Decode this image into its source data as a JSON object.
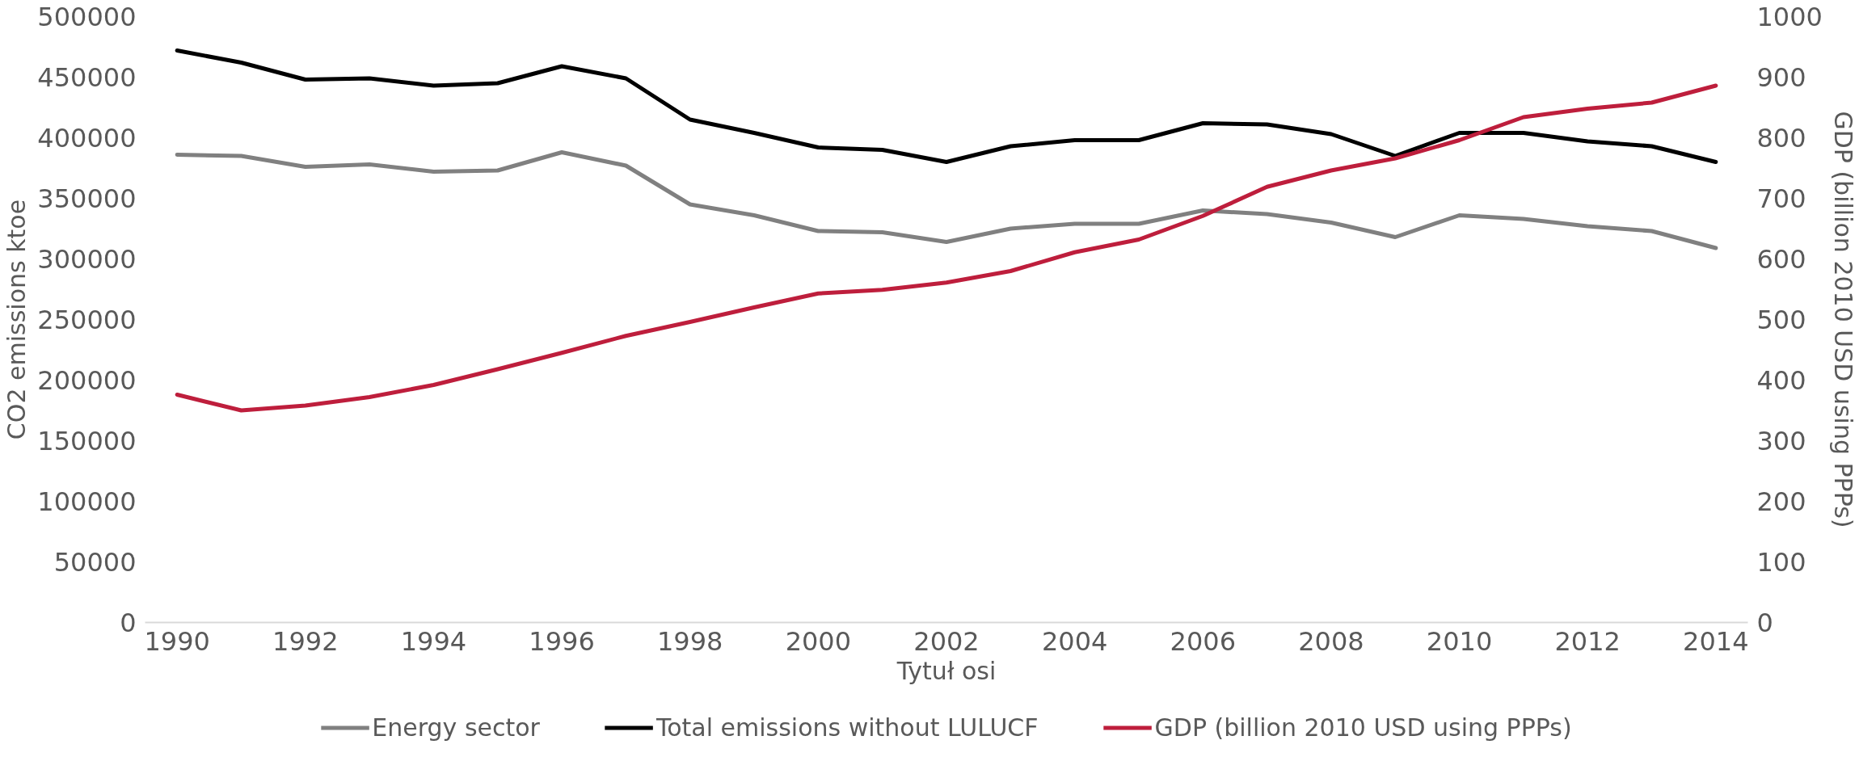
{
  "chart_data": {
    "type": "line",
    "xlabel": "Tytuł osi",
    "ylabel": "CO2 emissions ktoe",
    "y2label": "GDP (billion 2010 USD using PPPs)",
    "x": [
      1990,
      1991,
      1992,
      1993,
      1994,
      1995,
      1996,
      1997,
      1998,
      1999,
      2000,
      2001,
      2002,
      2003,
      2004,
      2005,
      2006,
      2007,
      2008,
      2009,
      2010,
      2011,
      2012,
      2013,
      2014
    ],
    "xlim": [
      1989.5,
      2014.5
    ],
    "xticks": [
      1990,
      1992,
      1994,
      1996,
      1998,
      2000,
      2002,
      2004,
      2006,
      2008,
      2010,
      2012,
      2014
    ],
    "ylim": [
      0,
      500000
    ],
    "yticks": [
      0,
      50000,
      100000,
      150000,
      200000,
      250000,
      300000,
      350000,
      400000,
      450000,
      500000
    ],
    "y2lim": [
      0,
      1000
    ],
    "y2ticks": [
      0,
      100,
      200,
      300,
      400,
      500,
      600,
      700,
      800,
      900,
      1000
    ],
    "grid": false,
    "legend": "bottom",
    "marker": "none",
    "line_style": "solid",
    "series": [
      {
        "name": "Energy sector",
        "color": "#808080",
        "values": [
          386000,
          385000,
          376000,
          378000,
          372000,
          373000,
          388000,
          377000,
          345000,
          336000,
          323000,
          322000,
          314000,
          325000,
          329000,
          329000,
          340000,
          337000,
          330000,
          318000,
          336000,
          333000,
          327000,
          323000,
          309000
        ]
      },
      {
        "name": "Total emissions without LULUCF",
        "color": "#000000",
        "values": [
          472000,
          462000,
          448000,
          449000,
          443000,
          445000,
          459000,
          449000,
          415000,
          404000,
          392000,
          390000,
          380000,
          393000,
          398000,
          398000,
          412000,
          411000,
          403000,
          385000,
          404000,
          404000,
          397000,
          393000,
          380000
        ]
      },
      {
        "name": "GDP (billion 2010 USD using PPPs)",
        "color": "#be1e3c",
        "axis": "y2",
        "values": [
          376,
          350,
          358,
          372,
          392,
          418,
          445,
          473,
          496,
          520,
          543,
          549,
          561,
          580,
          611,
          632,
          671,
          719,
          746,
          766,
          796,
          834,
          848,
          858,
          886
        ]
      }
    ]
  }
}
